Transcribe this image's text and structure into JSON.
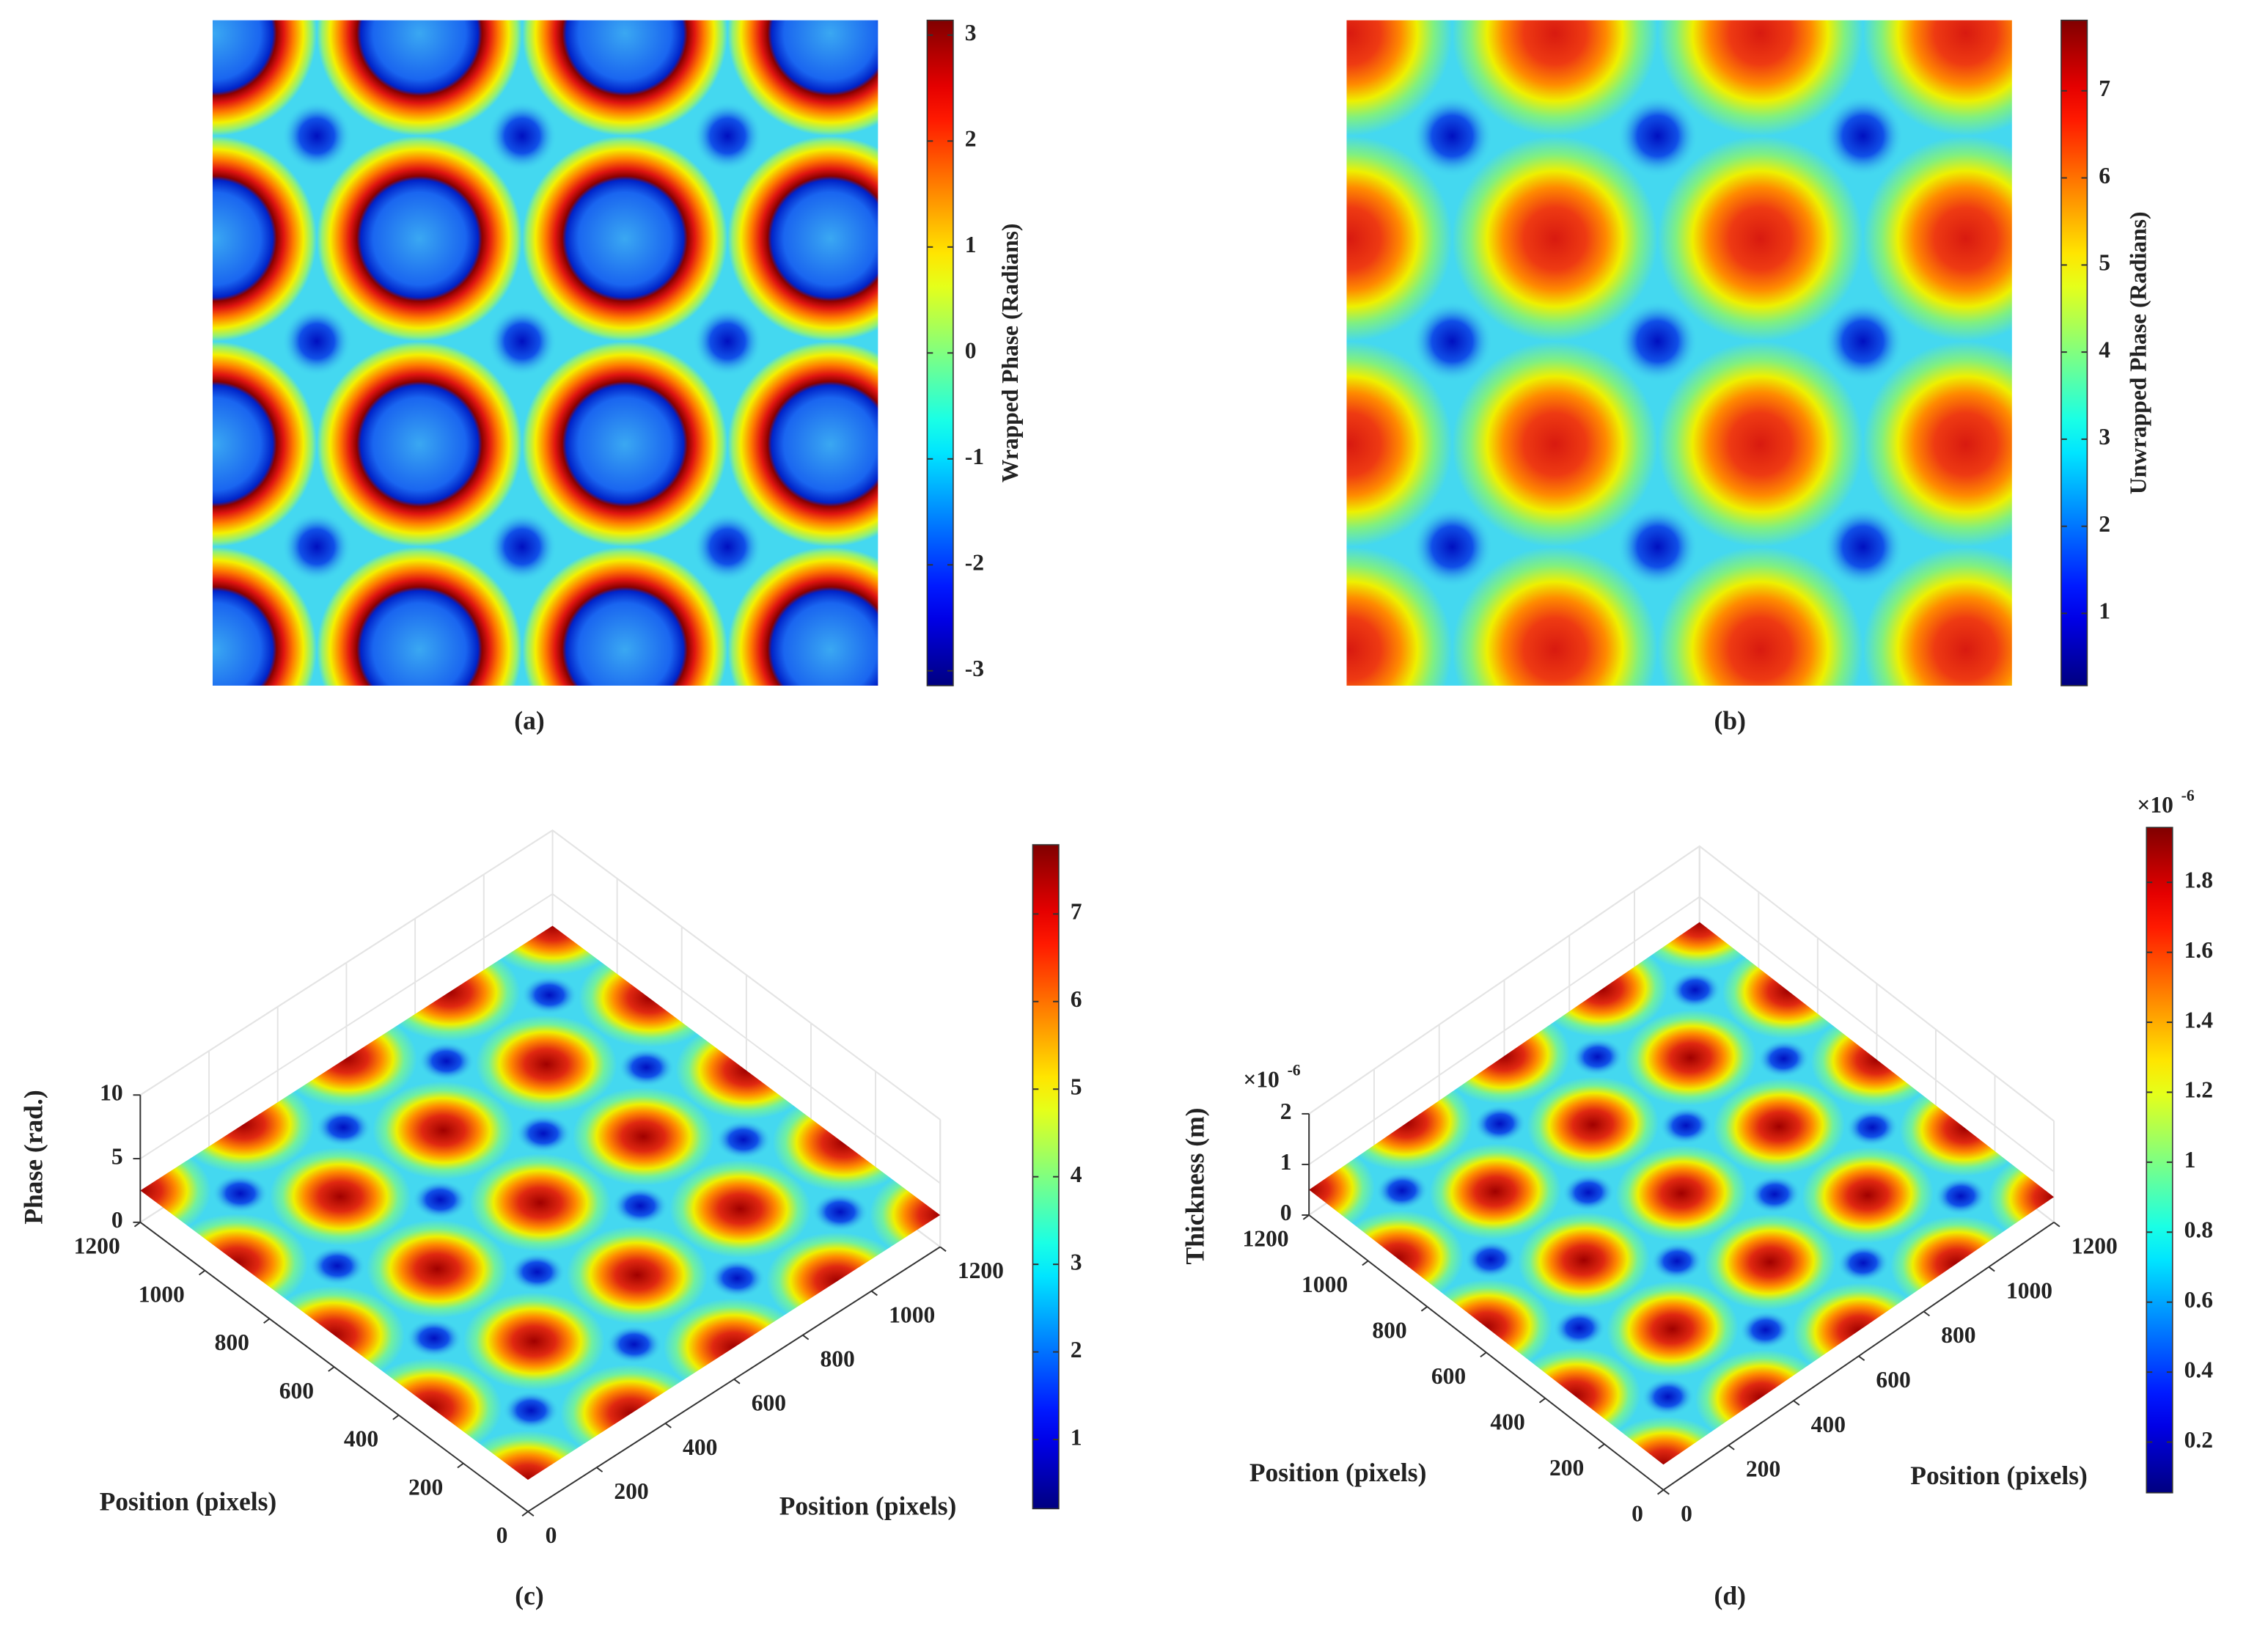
{
  "chart_data": [
    {
      "type": "heatmap",
      "panel_label": "(a)",
      "colormap": "jet",
      "colorbar_label": "Wrapped Phase (Radians)",
      "clim": [
        -3.14,
        3.14
      ],
      "cticks": [
        -3,
        -2,
        -1,
        0,
        1,
        2,
        3
      ]
    },
    {
      "type": "heatmap",
      "panel_label": "(b)",
      "colormap": "jet",
      "colorbar_label": "Unwrapped Phase (Radians)",
      "clim": [
        0.17,
        7.81
      ],
      "cticks": [
        1,
        2,
        3,
        4,
        5,
        6,
        7
      ]
    },
    {
      "type": "surface",
      "panel_label": "(c)",
      "colormap": "jet",
      "grid": true,
      "xlabel": "Position (pixels)",
      "ylabel": "Position (pixels)",
      "zlabel": "Phase (rad.)",
      "xlim": [
        0,
        1200
      ],
      "xticks": [
        0,
        200,
        400,
        600,
        800,
        1000,
        1200
      ],
      "ylim": [
        0,
        1200
      ],
      "yticks": [
        0,
        200,
        400,
        600,
        800,
        1000,
        1200
      ],
      "zlim": [
        0,
        10
      ],
      "zticks": [
        0,
        5,
        10
      ],
      "clim": [
        0.21,
        7.79
      ],
      "cticks": [
        1,
        2,
        3,
        4,
        5,
        6,
        7
      ]
    },
    {
      "type": "surface",
      "panel_label": "(d)",
      "colormap": "jet",
      "grid": true,
      "xlabel": "Position (pixels)",
      "ylabel": "Position (pixels)",
      "zlabel": "Thickness (m)",
      "xlim": [
        0,
        1200
      ],
      "xticks": [
        0,
        200,
        400,
        600,
        800,
        1000,
        1200
      ],
      "ylim": [
        0,
        1200
      ],
      "yticks": [
        0,
        200,
        400,
        600,
        800,
        1000,
        1200
      ],
      "zlim": [
        0,
        2
      ],
      "zticks": [
        0,
        1,
        2
      ],
      "z_multiplier": "×10",
      "z_exponent": "-6",
      "clim": [
        0.055,
        1.957
      ],
      "cticks": [
        0.2,
        0.4,
        0.6,
        0.8,
        1,
        1.2,
        1.4,
        1.6,
        1.8
      ],
      "c_multiplier": "×10",
      "c_exponent": "-6"
    }
  ]
}
